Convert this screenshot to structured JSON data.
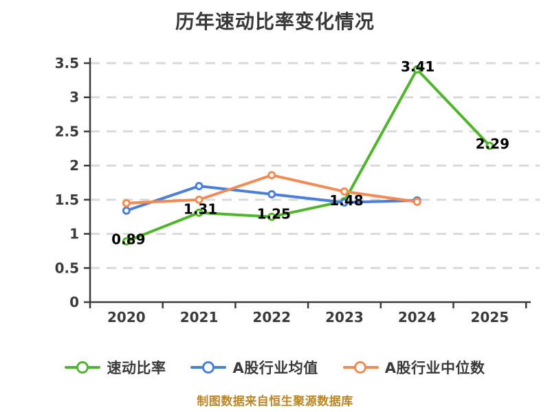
{
  "title": "历年速动比率变化情况",
  "footer": "制图数据来自恒生聚源数据库",
  "chart_data": {
    "type": "line",
    "title": "历年速动比率变化情况",
    "categories": [
      "2020",
      "2021",
      "2022",
      "2023",
      "2024",
      "2025"
    ],
    "series": [
      {
        "name": "速动比率",
        "color": "#50b52c",
        "values": [
          0.89,
          1.31,
          1.25,
          1.48,
          3.41,
          2.29
        ],
        "show_labels": true,
        "labels": [
          "0.89",
          "1.31",
          "1.25",
          "1.48",
          "3.41",
          "2.29"
        ],
        "label_offsets": [
          [
            3,
            -3
          ],
          [
            2,
            -5
          ],
          [
            3,
            -4
          ],
          [
            3,
            -1
          ],
          [
            1,
            -4
          ],
          [
            4,
            -3
          ]
        ]
      },
      {
        "name": "A股行业均值",
        "color": "#4a7edc",
        "values": [
          1.34,
          1.7,
          1.58,
          1.46,
          1.49
        ],
        "show_labels": false
      },
      {
        "name": "A股行业中位数",
        "color": "#f28a52",
        "values": [
          1.45,
          1.5,
          1.86,
          1.62,
          1.47
        ],
        "show_labels": false
      }
    ],
    "xlabel": "",
    "ylabel": "",
    "ylim": [
      0,
      3.5
    ],
    "ytick_step": 0.5,
    "yticks": [
      "0",
      "0.5",
      "1",
      "1.5",
      "2",
      "2.5",
      "3",
      "3.5"
    ],
    "grid": "horizontal-dashed",
    "legend_position": "bottom",
    "marker": "circle-white-fill"
  },
  "colors": {
    "grid": "#d9d9d9",
    "axis": "#3a3a3a",
    "tick_label": "#3a3a3a",
    "data_label": "#000000",
    "title": "#373737",
    "footer": "#ba8624",
    "background": "#ffffff"
  }
}
